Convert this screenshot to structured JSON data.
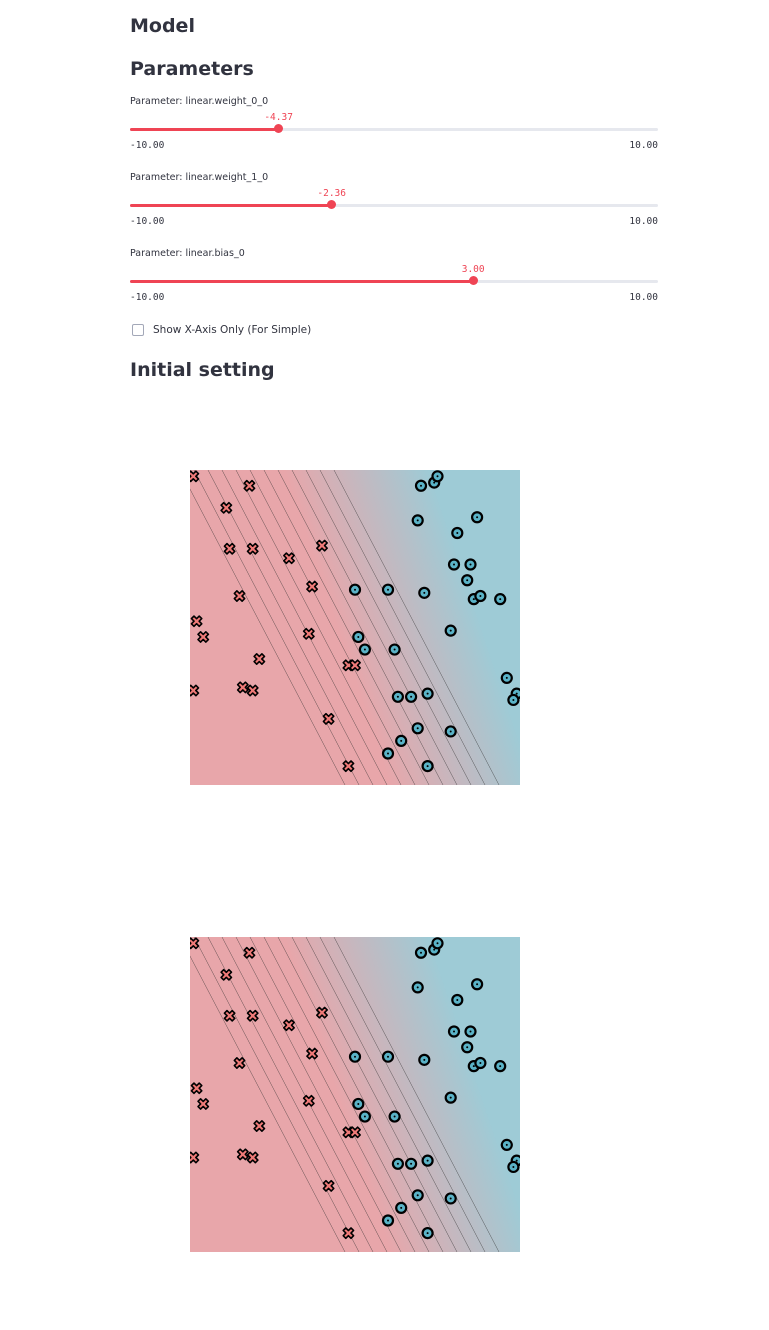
{
  "headings": {
    "model": "Model",
    "parameters": "Parameters",
    "initial_setting": "Initial setting"
  },
  "colors": {
    "accent": "#ef4454",
    "class_a": "#e8a6aa",
    "class_b": "#9ecbd6",
    "marker_x": "#f07a78",
    "marker_o": "#5ab3c7"
  },
  "parameters": [
    {
      "label": "Parameter: linear.weight_0_0",
      "value": -4.37,
      "value_text": "-4.37",
      "min": -10,
      "max": 10,
      "min_text": "-10.00",
      "max_text": "10.00"
    },
    {
      "label": "Parameter: linear.weight_1_0",
      "value": -2.36,
      "value_text": "-2.36",
      "min": -10,
      "max": 10,
      "min_text": "-10.00",
      "max_text": "10.00"
    },
    {
      "label": "Parameter: linear.bias_0",
      "value": 3.0,
      "value_text": "3.00",
      "min": -10,
      "max": 10,
      "min_text": "-10.00",
      "max_text": "10.00"
    }
  ],
  "checkbox": {
    "label": "Show X-Axis Only (For Simple)",
    "checked": false
  },
  "chart_data": [
    {
      "type": "scatter",
      "title": "",
      "background": "decision-contour",
      "xlim": [
        0,
        1
      ],
      "ylim": [
        0,
        1
      ],
      "series": [
        {
          "marker": "x",
          "points": [
            [
              0.01,
              0.98
            ],
            [
              0.18,
              0.95
            ],
            [
              0.11,
              0.88
            ],
            [
              0.12,
              0.75
            ],
            [
              0.19,
              0.75
            ],
            [
              0.3,
              0.72
            ],
            [
              0.4,
              0.76
            ],
            [
              0.37,
              0.63
            ],
            [
              0.15,
              0.6
            ],
            [
              0.02,
              0.52
            ],
            [
              0.04,
              0.47
            ],
            [
              0.36,
              0.48
            ],
            [
              0.21,
              0.4
            ],
            [
              0.16,
              0.31
            ],
            [
              0.19,
              0.3
            ],
            [
              0.01,
              0.3
            ],
            [
              0.48,
              0.38
            ],
            [
              0.5,
              0.38
            ],
            [
              0.42,
              0.21
            ],
            [
              0.48,
              0.06
            ]
          ]
        },
        {
          "marker": "o",
          "points": [
            [
              0.7,
              0.95
            ],
            [
              0.74,
              0.96
            ],
            [
              0.75,
              0.98
            ],
            [
              0.69,
              0.84
            ],
            [
              0.81,
              0.8
            ],
            [
              0.87,
              0.85
            ],
            [
              0.8,
              0.7
            ],
            [
              0.85,
              0.7
            ],
            [
              0.84,
              0.65
            ],
            [
              0.86,
              0.59
            ],
            [
              0.88,
              0.6
            ],
            [
              0.94,
              0.59
            ],
            [
              0.5,
              0.62
            ],
            [
              0.6,
              0.62
            ],
            [
              0.71,
              0.61
            ],
            [
              0.51,
              0.47
            ],
            [
              0.53,
              0.43
            ],
            [
              0.62,
              0.43
            ],
            [
              0.79,
              0.49
            ],
            [
              0.96,
              0.34
            ],
            [
              0.99,
              0.29
            ],
            [
              0.98,
              0.27
            ],
            [
              0.63,
              0.28
            ],
            [
              0.67,
              0.28
            ],
            [
              0.72,
              0.29
            ],
            [
              0.69,
              0.18
            ],
            [
              0.64,
              0.14
            ],
            [
              0.6,
              0.1
            ],
            [
              0.72,
              0.06
            ],
            [
              0.79,
              0.17
            ]
          ]
        }
      ]
    },
    {
      "type": "scatter",
      "title": "",
      "background": "decision-contour",
      "xlim": [
        0,
        1
      ],
      "ylim": [
        0,
        1
      ],
      "series": [
        {
          "marker": "x",
          "points": [
            [
              0.01,
              0.98
            ],
            [
              0.18,
              0.95
            ],
            [
              0.11,
              0.88
            ],
            [
              0.12,
              0.75
            ],
            [
              0.19,
              0.75
            ],
            [
              0.3,
              0.72
            ],
            [
              0.4,
              0.76
            ],
            [
              0.37,
              0.63
            ],
            [
              0.15,
              0.6
            ],
            [
              0.02,
              0.52
            ],
            [
              0.04,
              0.47
            ],
            [
              0.36,
              0.48
            ],
            [
              0.21,
              0.4
            ],
            [
              0.16,
              0.31
            ],
            [
              0.19,
              0.3
            ],
            [
              0.01,
              0.3
            ],
            [
              0.48,
              0.38
            ],
            [
              0.5,
              0.38
            ],
            [
              0.42,
              0.21
            ],
            [
              0.48,
              0.06
            ]
          ]
        },
        {
          "marker": "o",
          "points": [
            [
              0.7,
              0.95
            ],
            [
              0.74,
              0.96
            ],
            [
              0.75,
              0.98
            ],
            [
              0.69,
              0.84
            ],
            [
              0.81,
              0.8
            ],
            [
              0.87,
              0.85
            ],
            [
              0.8,
              0.7
            ],
            [
              0.85,
              0.7
            ],
            [
              0.84,
              0.65
            ],
            [
              0.86,
              0.59
            ],
            [
              0.88,
              0.6
            ],
            [
              0.94,
              0.59
            ],
            [
              0.5,
              0.62
            ],
            [
              0.6,
              0.62
            ],
            [
              0.71,
              0.61
            ],
            [
              0.51,
              0.47
            ],
            [
              0.53,
              0.43
            ],
            [
              0.62,
              0.43
            ],
            [
              0.79,
              0.49
            ],
            [
              0.96,
              0.34
            ],
            [
              0.99,
              0.29
            ],
            [
              0.98,
              0.27
            ],
            [
              0.63,
              0.28
            ],
            [
              0.67,
              0.28
            ],
            [
              0.72,
              0.29
            ],
            [
              0.69,
              0.18
            ],
            [
              0.64,
              0.14
            ],
            [
              0.6,
              0.1
            ],
            [
              0.72,
              0.06
            ],
            [
              0.79,
              0.17
            ]
          ]
        }
      ]
    }
  ]
}
